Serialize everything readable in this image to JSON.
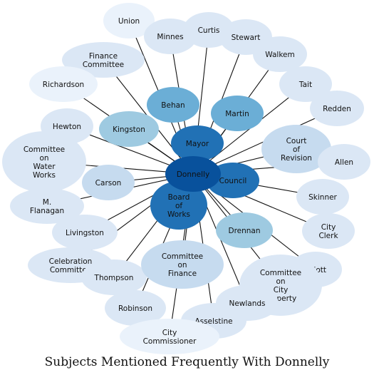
{
  "title": "Subjects Mentioned Frequently With Donnelly",
  "center": "Donnelly",
  "colors": {
    "lightest": "#eaf2fb",
    "light": "#dbe7f5",
    "pale": "#c6dbef",
    "mid": "#9ecae1",
    "medium": "#6baed6",
    "strong": "#3182bd",
    "dark": "#2171b5",
    "darkest": "#08519c"
  },
  "nodes": [
    {
      "id": "union",
      "lines": [
        "Union"
      ],
      "color": "#eaf2fb"
    },
    {
      "id": "minnes",
      "lines": [
        "Minnes"
      ],
      "color": "#dbe7f5"
    },
    {
      "id": "curtis",
      "lines": [
        "Curtis"
      ],
      "color": "#dbe7f5"
    },
    {
      "id": "stewart",
      "lines": [
        "Stewart"
      ],
      "color": "#dbe7f5"
    },
    {
      "id": "walkem",
      "lines": [
        "Walkem"
      ],
      "color": "#dbe7f5"
    },
    {
      "id": "finance-committee",
      "lines": [
        "Finance",
        "Committee"
      ],
      "color": "#dbe7f5"
    },
    {
      "id": "richardson",
      "lines": [
        "Richardson"
      ],
      "color": "#eaf2fb"
    },
    {
      "id": "tait",
      "lines": [
        "Tait"
      ],
      "color": "#dbe7f5"
    },
    {
      "id": "redden",
      "lines": [
        "Redden"
      ],
      "color": "#dbe7f5"
    },
    {
      "id": "behan",
      "lines": [
        "Behan"
      ],
      "color": "#6baed6"
    },
    {
      "id": "martin",
      "lines": [
        "Martin"
      ],
      "color": "#6baed6"
    },
    {
      "id": "kingston",
      "lines": [
        "Kingston"
      ],
      "color": "#9ecae1"
    },
    {
      "id": "hewton",
      "lines": [
        "Hewton"
      ],
      "color": "#dbe7f5"
    },
    {
      "id": "mayor",
      "lines": [
        "Mayor"
      ],
      "color": "#2171b5"
    },
    {
      "id": "court-of-revision",
      "lines": [
        "Court",
        "of",
        "Revision"
      ],
      "color": "#c6dbef"
    },
    {
      "id": "allen",
      "lines": [
        "Allen"
      ],
      "color": "#dbe7f5"
    },
    {
      "id": "committee-water-works",
      "lines": [
        "Committee",
        "on",
        "Water",
        "Works"
      ],
      "color": "#dbe7f5"
    },
    {
      "id": "carson",
      "lines": [
        "Carson"
      ],
      "color": "#c6dbef"
    },
    {
      "id": "council",
      "lines": [
        "Council"
      ],
      "color": "#2171b5"
    },
    {
      "id": "skinner",
      "lines": [
        "Skinner"
      ],
      "color": "#dbe7f5"
    },
    {
      "id": "m-flanagan",
      "lines": [
        "M.",
        "Flanagan"
      ],
      "color": "#dbe7f5"
    },
    {
      "id": "board-of-works",
      "lines": [
        "Board",
        "of",
        "Works"
      ],
      "color": "#2171b5"
    },
    {
      "id": "livingston",
      "lines": [
        "Livingston"
      ],
      "color": "#dbe7f5"
    },
    {
      "id": "city-clerk",
      "lines": [
        "City",
        "Clerk"
      ],
      "color": "#dbe7f5"
    },
    {
      "id": "drennan",
      "lines": [
        "Drennan"
      ],
      "color": "#9ecae1"
    },
    {
      "id": "celebration-committee",
      "lines": [
        "Celebration",
        "Committee"
      ],
      "color": "#dbe7f5"
    },
    {
      "id": "thompson",
      "lines": [
        "Thompson"
      ],
      "color": "#dbe7f5"
    },
    {
      "id": "committee-on-finance",
      "lines": [
        "Committee",
        "on",
        "Finance"
      ],
      "color": "#c6dbef"
    },
    {
      "id": "elliott",
      "lines": [
        "Elliott"
      ],
      "color": "#dbe7f5"
    },
    {
      "id": "committee-city-property",
      "lines": [
        "Committee",
        "on",
        "City",
        "Property"
      ],
      "color": "#dbe7f5"
    },
    {
      "id": "robinson",
      "lines": [
        "Robinson"
      ],
      "color": "#dbe7f5"
    },
    {
      "id": "newlands",
      "lines": [
        "Newlands"
      ],
      "color": "#dbe7f5"
    },
    {
      "id": "asselstine",
      "lines": [
        "Asselstine"
      ],
      "color": "#dbe7f5"
    },
    {
      "id": "city-commissioner",
      "lines": [
        "City",
        "Commissioner"
      ],
      "color": "#eaf2fb"
    },
    {
      "id": "donnelly",
      "lines": [
        "Donnelly"
      ],
      "color": "#08519c"
    }
  ]
}
